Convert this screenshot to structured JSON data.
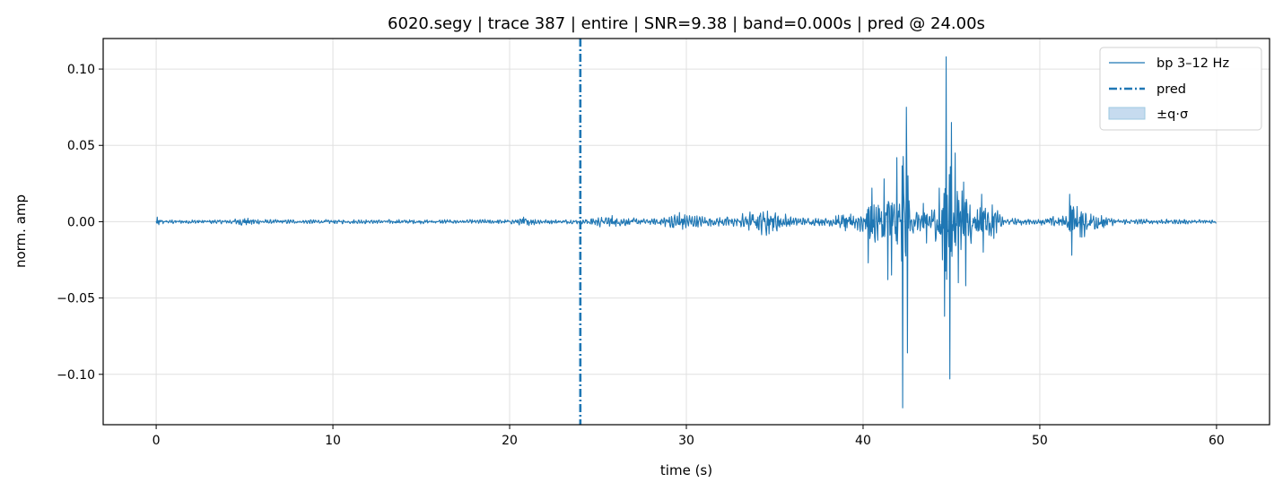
{
  "chart_data": {
    "type": "line",
    "title": "6020.segy | trace 387 | entire | SNR=9.38 | band=0.000s | pred @ 24.00s",
    "xlabel": "time (s)",
    "ylabel": "norm. amp",
    "xlim": [
      -3,
      63
    ],
    "ylim": [
      -0.133,
      0.12
    ],
    "xticks": [
      0,
      10,
      20,
      30,
      40,
      50,
      60
    ],
    "yticks": [
      -0.1,
      -0.05,
      0.0,
      0.05,
      0.1
    ],
    "xtick_labels": [
      "0",
      "10",
      "20",
      "30",
      "40",
      "50",
      "60"
    ],
    "ytick_labels": [
      "−0.10",
      "−0.05",
      "0.00",
      "0.05",
      "0.10"
    ],
    "grid": true,
    "legend_position": "top-right",
    "legend": [
      {
        "label": "bp 3–12 Hz",
        "style": "line"
      },
      {
        "label": "pred",
        "style": "dashdot"
      },
      {
        "label": "±q·σ",
        "style": "patch"
      }
    ],
    "colors": {
      "series": "#1f77b4",
      "band_fill": "#c6dbef",
      "grid": "#e0e0e0"
    },
    "series": [
      {
        "name": "bp 3–12 Hz",
        "x_range": [
          0,
          60
        ],
        "peaks": [
          {
            "x": 0.05,
            "y": 0.003
          },
          {
            "x": 0.15,
            "y": -0.002
          },
          {
            "x": 5.0,
            "y": 0.002
          },
          {
            "x": 5.1,
            "y": -0.002
          },
          {
            "x": 20.8,
            "y": 0.003
          },
          {
            "x": 21.0,
            "y": -0.002
          },
          {
            "x": 25.8,
            "y": 0.004
          },
          {
            "x": 26.0,
            "y": -0.003
          },
          {
            "x": 29.6,
            "y": 0.006
          },
          {
            "x": 29.8,
            "y": -0.005
          },
          {
            "x": 34.6,
            "y": 0.007
          },
          {
            "x": 34.9,
            "y": -0.006
          },
          {
            "x": 38.8,
            "y": 0.004
          },
          {
            "x": 39.0,
            "y": -0.006
          },
          {
            "x": 39.3,
            "y": 0.005
          },
          {
            "x": 40.5,
            "y": 0.022
          },
          {
            "x": 40.3,
            "y": -0.027
          },
          {
            "x": 41.2,
            "y": 0.028
          },
          {
            "x": 41.4,
            "y": -0.038
          },
          {
            "x": 41.6,
            "y": -0.035
          },
          {
            "x": 41.9,
            "y": 0.042
          },
          {
            "x": 42.2,
            "y": 0.086
          },
          {
            "x": 42.25,
            "y": -0.122
          },
          {
            "x": 42.45,
            "y": 0.075
          },
          {
            "x": 42.5,
            "y": -0.086
          },
          {
            "x": 43.4,
            "y": 0.012
          },
          {
            "x": 43.6,
            "y": -0.014
          },
          {
            "x": 44.3,
            "y": 0.022
          },
          {
            "x": 44.5,
            "y": -0.025
          },
          {
            "x": 44.7,
            "y": 0.108
          },
          {
            "x": 44.6,
            "y": -0.062
          },
          {
            "x": 44.9,
            "y": -0.103
          },
          {
            "x": 45.0,
            "y": 0.065
          },
          {
            "x": 45.2,
            "y": 0.045
          },
          {
            "x": 45.4,
            "y": -0.04
          },
          {
            "x": 45.7,
            "y": 0.026
          },
          {
            "x": 45.8,
            "y": -0.042
          },
          {
            "x": 46.7,
            "y": 0.018
          },
          {
            "x": 46.8,
            "y": -0.02
          },
          {
            "x": 47.3,
            "y": 0.011
          },
          {
            "x": 47.4,
            "y": -0.011
          },
          {
            "x": 51.7,
            "y": 0.018
          },
          {
            "x": 51.8,
            "y": -0.022
          },
          {
            "x": 52.1,
            "y": 0.01
          },
          {
            "x": 52.3,
            "y": -0.01
          },
          {
            "x": 53.5,
            "y": 0.004
          },
          {
            "x": 53.6,
            "y": -0.004
          }
        ],
        "envelope": [
          [
            0,
            0.0015
          ],
          [
            1,
            0.0012
          ],
          [
            4,
            0.0012
          ],
          [
            5,
            0.0025
          ],
          [
            6,
            0.0012
          ],
          [
            20,
            0.0012
          ],
          [
            21,
            0.0025
          ],
          [
            22,
            0.0012
          ],
          [
            24,
            0.0012
          ],
          [
            25.5,
            0.0035
          ],
          [
            26.5,
            0.0025
          ],
          [
            28,
            0.0015
          ],
          [
            29.5,
            0.005
          ],
          [
            30.5,
            0.0035
          ],
          [
            31.5,
            0.0025
          ],
          [
            32.8,
            0.003
          ],
          [
            33.3,
            0.005
          ],
          [
            34.5,
            0.008
          ],
          [
            35.3,
            0.006
          ],
          [
            36,
            0.0025
          ],
          [
            38,
            0.002
          ],
          [
            38.8,
            0.005
          ],
          [
            39.4,
            0.003
          ],
          [
            40,
            0.008
          ],
          [
            40.6,
            0.012
          ],
          [
            41,
            0.014
          ],
          [
            41.8,
            0.016
          ],
          [
            42.3,
            0.018
          ],
          [
            42.8,
            0.008
          ],
          [
            43.3,
            0.006
          ],
          [
            43.8,
            0.006
          ],
          [
            44.2,
            0.012
          ],
          [
            44.6,
            0.02
          ],
          [
            45.2,
            0.022
          ],
          [
            45.8,
            0.018
          ],
          [
            46.3,
            0.01
          ],
          [
            46.8,
            0.012
          ],
          [
            47.4,
            0.008
          ],
          [
            48,
            0.002
          ],
          [
            50,
            0.0018
          ],
          [
            51.4,
            0.004
          ],
          [
            51.9,
            0.012
          ],
          [
            52.6,
            0.008
          ],
          [
            53.2,
            0.006
          ],
          [
            53.8,
            0.003
          ],
          [
            54.5,
            0.0015
          ],
          [
            60,
            0.0012
          ]
        ]
      }
    ],
    "pred": {
      "x": 24.0,
      "band": 0.0
    }
  }
}
